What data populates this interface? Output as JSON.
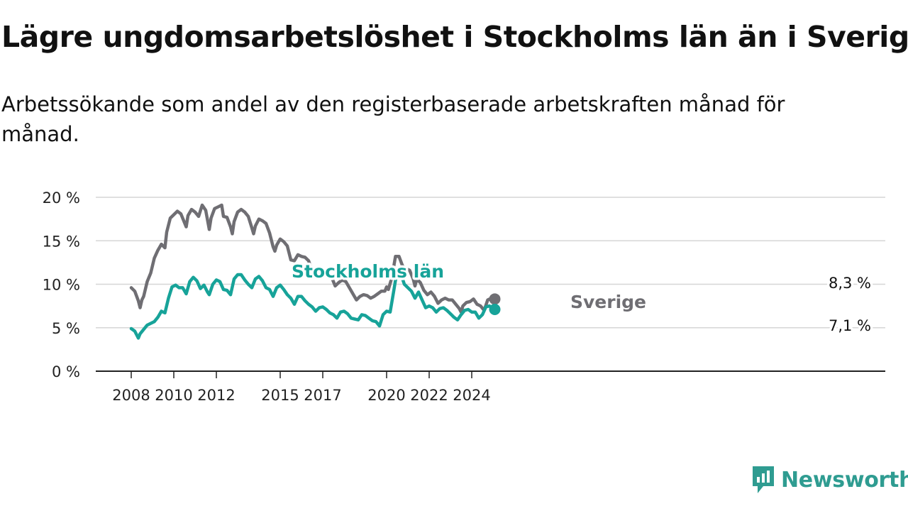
{
  "title": "Lägre ungdomsarbetslöshet i Stockholms län än i Sverige",
  "subtitle": "Arbetssökande som andel av den registerbaserade arbetskraften månad för månad.",
  "logo": {
    "text": "Newsworthy",
    "icon": "newsworthy-chart-icon",
    "color": "#2f9c91"
  },
  "chart_data": {
    "type": "line",
    "title": "Lägre ungdomsarbetslöshet i Stockholms län än i Sverige",
    "xlabel": "",
    "ylabel": "",
    "x_ticks": [
      "2008",
      "2010",
      "2012",
      "2015",
      "2017",
      "2020",
      "2022",
      "2024"
    ],
    "y_ticks": [
      "0 %",
      "5 %",
      "10 %",
      "15 %",
      "20 %"
    ],
    "ylim": [
      0,
      20
    ],
    "grid": true,
    "legend": "inline labels",
    "series": [
      {
        "name": "Sverige",
        "color": "#6f6e73",
        "end_label": "8,3 %",
        "points": [
          [
            "2008-01",
            9.6
          ],
          [
            "2008-03",
            9.2
          ],
          [
            "2008-05",
            8.1
          ],
          [
            "2008-06",
            7.3
          ],
          [
            "2008-07",
            8.2
          ],
          [
            "2008-08",
            8.6
          ],
          [
            "2008-10",
            10.3
          ],
          [
            "2008-12",
            11.3
          ],
          [
            "2009-02",
            13.0
          ],
          [
            "2009-04",
            13.9
          ],
          [
            "2009-06",
            14.6
          ],
          [
            "2009-08",
            14.2
          ],
          [
            "2009-09",
            16.0
          ],
          [
            "2009-11",
            17.6
          ],
          [
            "2010-01",
            18.0
          ],
          [
            "2010-03",
            18.4
          ],
          [
            "2010-05",
            18.1
          ],
          [
            "2010-07",
            17.1
          ],
          [
            "2010-08",
            16.6
          ],
          [
            "2010-09",
            17.9
          ],
          [
            "2010-11",
            18.6
          ],
          [
            "2011-01",
            18.3
          ],
          [
            "2011-03",
            17.8
          ],
          [
            "2011-05",
            19.1
          ],
          [
            "2011-07",
            18.5
          ],
          [
            "2011-09",
            16.3
          ],
          [
            "2011-10",
            17.6
          ],
          [
            "2011-12",
            18.7
          ],
          [
            "2012-02",
            18.9
          ],
          [
            "2012-04",
            19.1
          ],
          [
            "2012-05",
            17.8
          ],
          [
            "2012-07",
            17.7
          ],
          [
            "2012-09",
            16.6
          ],
          [
            "2012-10",
            15.8
          ],
          [
            "2012-11",
            17.2
          ],
          [
            "2013-01",
            18.3
          ],
          [
            "2013-03",
            18.6
          ],
          [
            "2013-05",
            18.3
          ],
          [
            "2013-07",
            17.8
          ],
          [
            "2013-09",
            16.5
          ],
          [
            "2013-10",
            15.8
          ],
          [
            "2013-11",
            16.7
          ],
          [
            "2014-01",
            17.5
          ],
          [
            "2014-03",
            17.3
          ],
          [
            "2014-05",
            17.0
          ],
          [
            "2014-07",
            15.9
          ],
          [
            "2014-09",
            14.3
          ],
          [
            "2014-10",
            13.8
          ],
          [
            "2014-11",
            14.5
          ],
          [
            "2015-01",
            15.2
          ],
          [
            "2015-03",
            14.9
          ],
          [
            "2015-05",
            14.4
          ],
          [
            "2015-07",
            12.8
          ],
          [
            "2015-09",
            12.7
          ],
          [
            "2015-11",
            13.4
          ],
          [
            "2016-01",
            13.2
          ],
          [
            "2016-03",
            13.1
          ],
          [
            "2016-05",
            12.7
          ],
          [
            "2016-07",
            11.5
          ],
          [
            "2016-08",
            11.0
          ],
          [
            "2016-10",
            11.4
          ],
          [
            "2016-12",
            11.7
          ],
          [
            "2017-02",
            11.6
          ],
          [
            "2017-04",
            11.3
          ],
          [
            "2017-06",
            10.8
          ],
          [
            "2017-08",
            9.8
          ],
          [
            "2017-10",
            10.2
          ],
          [
            "2017-12",
            10.5
          ],
          [
            "2018-02",
            10.3
          ],
          [
            "2018-04",
            9.6
          ],
          [
            "2018-06",
            8.9
          ],
          [
            "2018-08",
            8.2
          ],
          [
            "2018-10",
            8.6
          ],
          [
            "2018-12",
            8.8
          ],
          [
            "2019-02",
            8.7
          ],
          [
            "2019-04",
            8.4
          ],
          [
            "2019-06",
            8.6
          ],
          [
            "2019-08",
            8.9
          ],
          [
            "2019-10",
            9.2
          ],
          [
            "2019-12",
            9.2
          ],
          [
            "2020-01",
            9.7
          ],
          [
            "2020-02",
            9.4
          ],
          [
            "2020-04",
            10.8
          ],
          [
            "2020-06",
            13.2
          ],
          [
            "2020-08",
            13.2
          ],
          [
            "2020-10",
            12.1
          ],
          [
            "2020-12",
            11.8
          ],
          [
            "2021-02",
            11.6
          ],
          [
            "2021-04",
            10.6
          ],
          [
            "2021-05",
            9.8
          ],
          [
            "2021-06",
            10.6
          ],
          [
            "2021-08",
            10.2
          ],
          [
            "2021-10",
            9.3
          ],
          [
            "2021-12",
            8.8
          ],
          [
            "2022-02",
            9.1
          ],
          [
            "2022-04",
            8.6
          ],
          [
            "2022-06",
            7.8
          ],
          [
            "2022-08",
            8.2
          ],
          [
            "2022-10",
            8.4
          ],
          [
            "2022-12",
            8.2
          ],
          [
            "2023-02",
            8.2
          ],
          [
            "2023-04",
            7.7
          ],
          [
            "2023-06",
            7.2
          ],
          [
            "2023-07",
            6.8
          ],
          [
            "2023-08",
            7.5
          ],
          [
            "2023-10",
            7.9
          ],
          [
            "2023-12",
            8.0
          ],
          [
            "2024-02",
            8.3
          ],
          [
            "2024-04",
            7.7
          ],
          [
            "2024-06",
            7.5
          ],
          [
            "2024-08",
            7.0
          ],
          [
            "2024-10",
            8.2
          ],
          [
            "2024-12",
            8.4
          ],
          [
            "2025-02",
            8.3
          ]
        ]
      },
      {
        "name": "Stockholms län",
        "color": "#17a399",
        "end_label": "7,1 %",
        "points": [
          [
            "2008-01",
            4.9
          ],
          [
            "2008-03",
            4.6
          ],
          [
            "2008-05",
            3.8
          ],
          [
            "2008-06",
            4.3
          ],
          [
            "2008-08",
            4.8
          ],
          [
            "2008-10",
            5.3
          ],
          [
            "2008-12",
            5.5
          ],
          [
            "2009-02",
            5.7
          ],
          [
            "2009-04",
            6.2
          ],
          [
            "2009-06",
            6.9
          ],
          [
            "2009-08",
            6.7
          ],
          [
            "2009-10",
            8.4
          ],
          [
            "2009-12",
            9.7
          ],
          [
            "2010-02",
            9.9
          ],
          [
            "2010-04",
            9.6
          ],
          [
            "2010-06",
            9.6
          ],
          [
            "2010-08",
            8.9
          ],
          [
            "2010-10",
            10.3
          ],
          [
            "2010-12",
            10.8
          ],
          [
            "2011-02",
            10.4
          ],
          [
            "2011-04",
            9.5
          ],
          [
            "2011-06",
            9.9
          ],
          [
            "2011-08",
            9.1
          ],
          [
            "2011-09",
            8.8
          ],
          [
            "2011-11",
            10.0
          ],
          [
            "2012-01",
            10.5
          ],
          [
            "2012-03",
            10.3
          ],
          [
            "2012-05",
            9.4
          ],
          [
            "2012-07",
            9.3
          ],
          [
            "2012-09",
            8.8
          ],
          [
            "2012-11",
            10.6
          ],
          [
            "2013-01",
            11.1
          ],
          [
            "2013-03",
            11.1
          ],
          [
            "2013-05",
            10.5
          ],
          [
            "2013-07",
            10.0
          ],
          [
            "2013-09",
            9.6
          ],
          [
            "2013-11",
            10.6
          ],
          [
            "2014-01",
            10.9
          ],
          [
            "2014-03",
            10.4
          ],
          [
            "2014-05",
            9.6
          ],
          [
            "2014-07",
            9.4
          ],
          [
            "2014-09",
            8.6
          ],
          [
            "2014-11",
            9.6
          ],
          [
            "2015-01",
            9.9
          ],
          [
            "2015-03",
            9.4
          ],
          [
            "2015-05",
            8.8
          ],
          [
            "2015-07",
            8.4
          ],
          [
            "2015-09",
            7.7
          ],
          [
            "2015-11",
            8.6
          ],
          [
            "2016-01",
            8.6
          ],
          [
            "2016-03",
            8.1
          ],
          [
            "2016-05",
            7.7
          ],
          [
            "2016-07",
            7.4
          ],
          [
            "2016-09",
            6.9
          ],
          [
            "2016-11",
            7.3
          ],
          [
            "2017-01",
            7.4
          ],
          [
            "2017-03",
            7.1
          ],
          [
            "2017-05",
            6.7
          ],
          [
            "2017-07",
            6.5
          ],
          [
            "2017-09",
            6.1
          ],
          [
            "2017-11",
            6.8
          ],
          [
            "2018-01",
            6.9
          ],
          [
            "2018-03",
            6.6
          ],
          [
            "2018-05",
            6.1
          ],
          [
            "2018-07",
            6.0
          ],
          [
            "2018-09",
            5.9
          ],
          [
            "2018-11",
            6.5
          ],
          [
            "2019-01",
            6.4
          ],
          [
            "2019-03",
            6.1
          ],
          [
            "2019-05",
            5.8
          ],
          [
            "2019-07",
            5.7
          ],
          [
            "2019-09",
            5.2
          ],
          [
            "2019-11",
            6.5
          ],
          [
            "2020-01",
            6.9
          ],
          [
            "2020-03",
            6.8
          ],
          [
            "2020-05",
            9.2
          ],
          [
            "2020-07",
            11.7
          ],
          [
            "2020-09",
            11.2
          ],
          [
            "2020-11",
            10.0
          ],
          [
            "2021-01",
            9.6
          ],
          [
            "2021-03",
            9.2
          ],
          [
            "2021-05",
            8.4
          ],
          [
            "2021-07",
            9.1
          ],
          [
            "2021-09",
            8.2
          ],
          [
            "2021-11",
            7.3
          ],
          [
            "2022-01",
            7.5
          ],
          [
            "2022-03",
            7.3
          ],
          [
            "2022-05",
            6.8
          ],
          [
            "2022-07",
            7.2
          ],
          [
            "2022-09",
            7.3
          ],
          [
            "2022-11",
            7.0
          ],
          [
            "2023-01",
            6.6
          ],
          [
            "2023-03",
            6.2
          ],
          [
            "2023-05",
            5.9
          ],
          [
            "2023-07",
            6.5
          ],
          [
            "2023-09",
            7.0
          ],
          [
            "2023-11",
            7.1
          ],
          [
            "2024-01",
            6.8
          ],
          [
            "2024-03",
            6.8
          ],
          [
            "2024-05",
            6.1
          ],
          [
            "2024-07",
            6.5
          ],
          [
            "2024-09",
            7.4
          ],
          [
            "2024-11",
            7.5
          ],
          [
            "2025-02",
            7.1
          ]
        ]
      }
    ]
  }
}
